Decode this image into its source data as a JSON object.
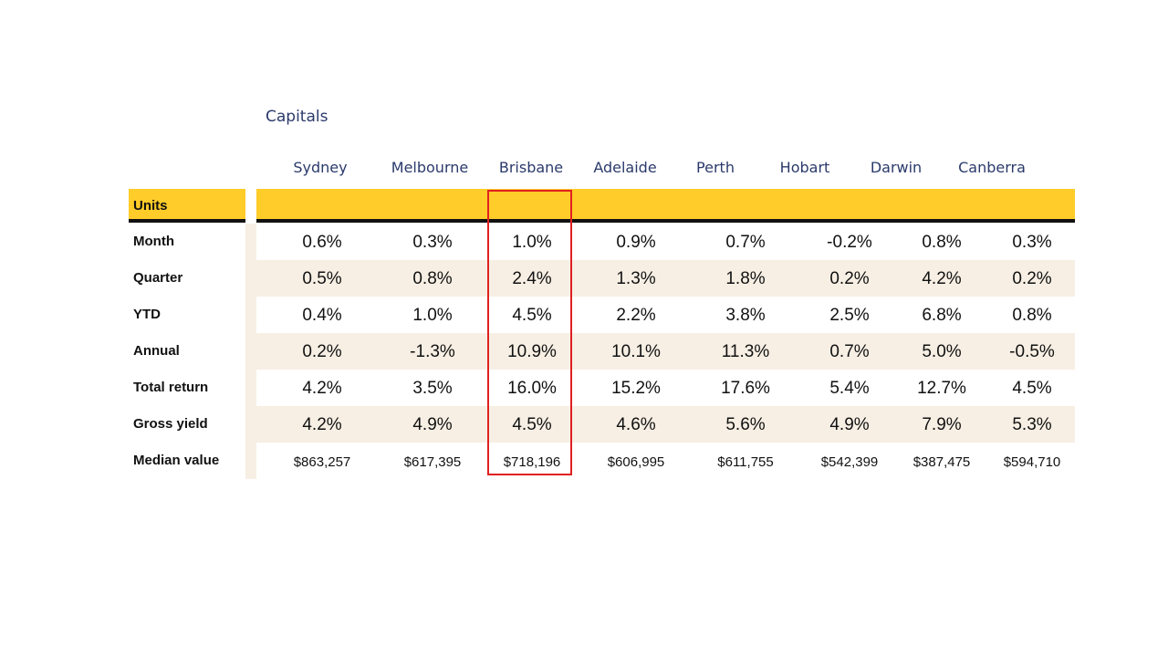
{
  "group_title": "Capitals",
  "cities": [
    "Sydney",
    "Melbourne",
    "Brisbane",
    "Adelaide",
    "Perth",
    "Hobart",
    "Darwin",
    "Canberra"
  ],
  "section_label": "Units",
  "rows": [
    {
      "label": "Month",
      "values": [
        "0.6%",
        "0.3%",
        "1.0%",
        "0.9%",
        "0.7%",
        "-0.2%",
        "0.8%",
        "0.3%"
      ]
    },
    {
      "label": "Quarter",
      "values": [
        "0.5%",
        "0.8%",
        "2.4%",
        "1.3%",
        "1.8%",
        "0.2%",
        "4.2%",
        "0.2%"
      ]
    },
    {
      "label": "YTD",
      "values": [
        "0.4%",
        "1.0%",
        "4.5%",
        "2.2%",
        "3.8%",
        "2.5%",
        "6.8%",
        "0.8%"
      ]
    },
    {
      "label": "Annual",
      "values": [
        "0.2%",
        "-1.3%",
        "10.9%",
        "10.1%",
        "11.3%",
        "0.7%",
        "5.0%",
        "-0.5%"
      ]
    },
    {
      "label": "Total return",
      "values": [
        "4.2%",
        "3.5%",
        "16.0%",
        "15.2%",
        "17.6%",
        "5.4%",
        "12.7%",
        "4.5%"
      ]
    },
    {
      "label": "Gross yield",
      "values": [
        "4.2%",
        "4.9%",
        "4.5%",
        "4.6%",
        "5.6%",
        "4.9%",
        "7.9%",
        "5.3%"
      ]
    },
    {
      "label": "Median value",
      "values": [
        "$863,257",
        "$617,395",
        "$718,196",
        "$606,995",
        "$611,755",
        "$542,399",
        "$387,475",
        "$594,710"
      ]
    }
  ],
  "highlighted_column": "Brisbane",
  "colors": {
    "header_band": "#ffcc29",
    "row_shade": "#f7efe4",
    "city_text": "#2b3a6b",
    "highlight_border": "#e02020"
  }
}
